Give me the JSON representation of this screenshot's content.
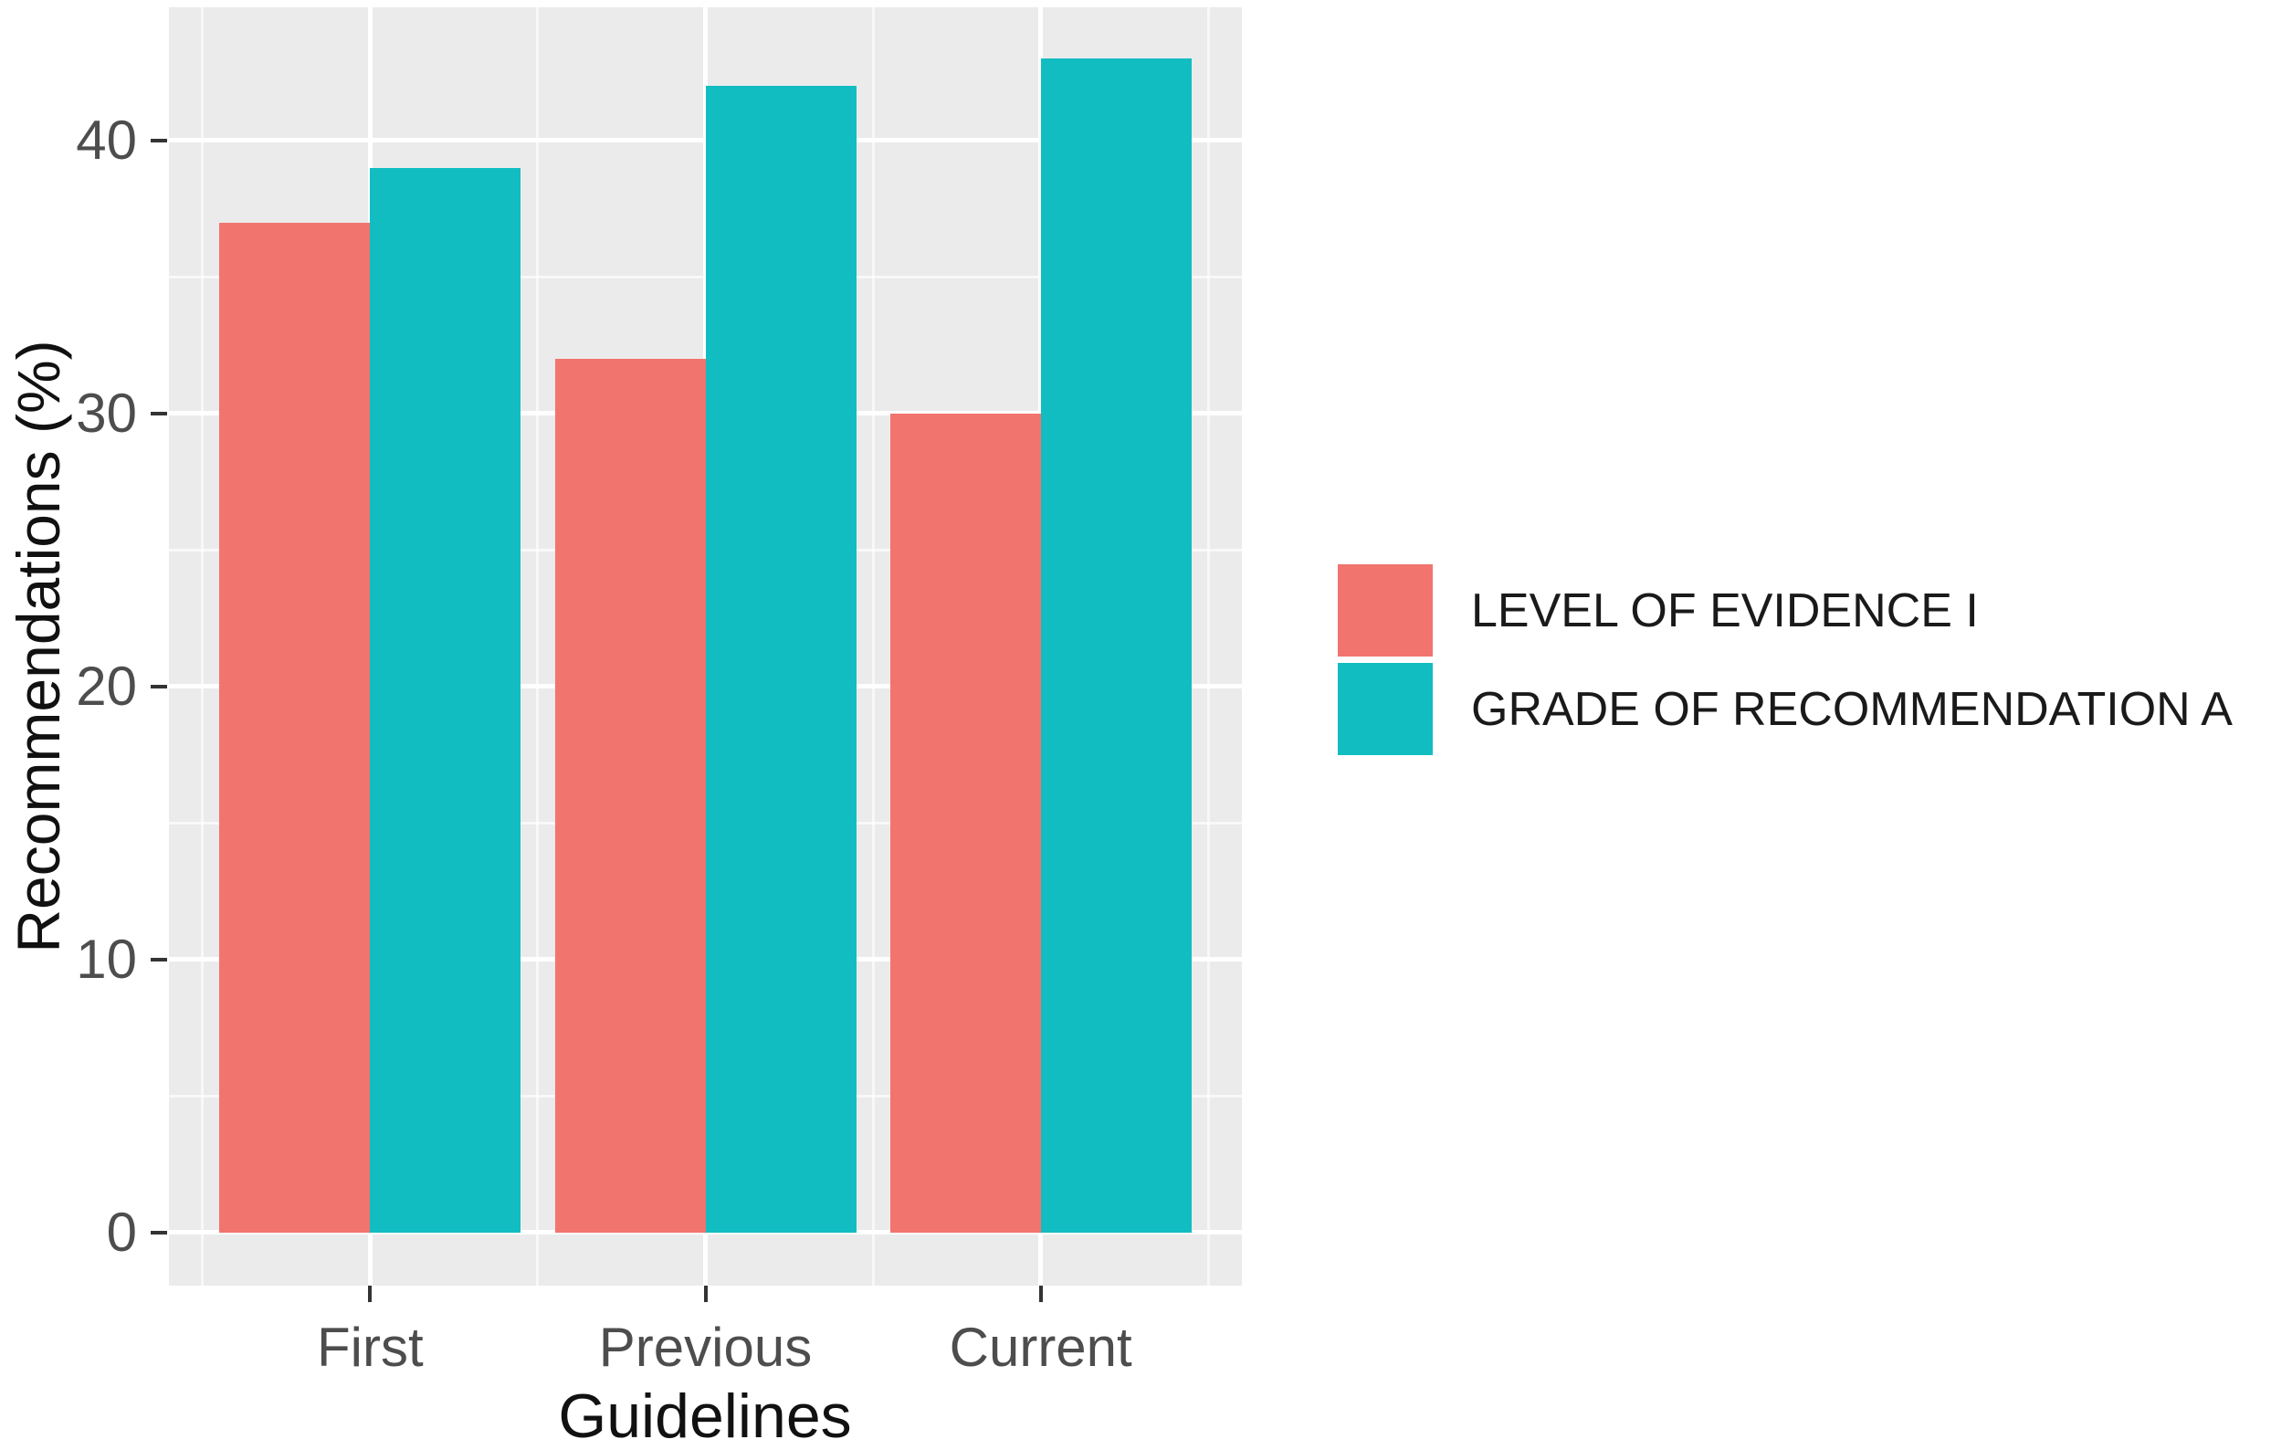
{
  "chart_data": {
    "type": "bar",
    "title": "",
    "categories": [
      "First",
      "Previous",
      "Current"
    ],
    "series": [
      {
        "name": "LEVEL OF EVIDENCE I",
        "color": "#F2746E",
        "values": [
          37,
          32,
          30
        ]
      },
      {
        "name": "GRADE OF RECOMMENDATION A",
        "color": "#12BDC2",
        "values": [
          39,
          42,
          43
        ]
      }
    ],
    "xlabel": "Guidelines",
    "ylabel": "Recommendations (%)",
    "y_ticks": [
      0,
      10,
      20,
      30,
      40
    ],
    "y_minor_ticks": [
      5,
      15,
      25,
      35
    ],
    "ylim": [
      -1.94,
      44.88
    ],
    "grid": "white major and minor gridlines on gray panel",
    "legend_position": "right",
    "colors": {
      "panel_background": "#EBEBEB",
      "gridline": "#FFFFFF",
      "tick_mark": "#333333",
      "tick_label": "#4d4d4d",
      "axis_title": "#111111",
      "legend_text": "#1a1a1a",
      "figure_background": "#FFFFFF"
    }
  }
}
